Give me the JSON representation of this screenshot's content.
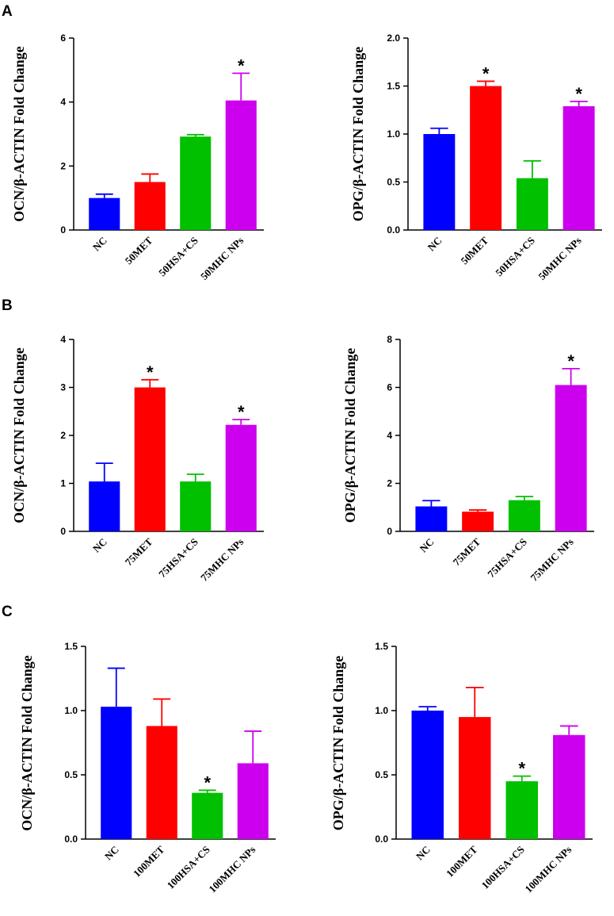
{
  "panels": [
    "A",
    "B",
    "C"
  ],
  "colors": [
    "#0000ff",
    "#ff0000",
    "#00c000",
    "#cc00ee"
  ],
  "chart_data": [
    {
      "id": "A-left",
      "panel": "A",
      "type": "bar",
      "ylabel": "OCN/β-ACTIN Fold Change",
      "categories": [
        "NC",
        "50MET",
        "50HSA+CS",
        "50MHC NPs"
      ],
      "values": [
        1.0,
        1.5,
        2.92,
        4.05
      ],
      "errors": [
        0.12,
        0.25,
        0.06,
        0.85
      ],
      "significant": [
        false,
        false,
        false,
        true
      ],
      "ylim": [
        0,
        6
      ],
      "yticks": [
        "0",
        "2",
        "4",
        "6"
      ],
      "star_label": "*"
    },
    {
      "id": "A-right",
      "panel": "A",
      "type": "bar",
      "ylabel": "OPG/β-ACTIN Fold Change",
      "categories": [
        "NC",
        "50MET",
        "50HSA+CS",
        "50MHC NPs"
      ],
      "values": [
        1.0,
        1.5,
        0.54,
        1.29
      ],
      "errors": [
        0.06,
        0.05,
        0.18,
        0.05
      ],
      "significant": [
        false,
        true,
        false,
        true
      ],
      "ylim": [
        0,
        2
      ],
      "yticks": [
        "0.0",
        "0.5",
        "1.0",
        "1.5",
        "2.0"
      ],
      "star_label": "*"
    },
    {
      "id": "B-left",
      "panel": "B",
      "type": "bar",
      "ylabel": "OCN/β-ACTIN Fold Change",
      "categories": [
        "NC",
        "75MET",
        "75HSA+CS",
        "75MHC NPs"
      ],
      "values": [
        1.04,
        3.0,
        1.04,
        2.22
      ],
      "errors": [
        0.38,
        0.16,
        0.15,
        0.11
      ],
      "significant": [
        false,
        true,
        false,
        true
      ],
      "ylim": [
        0,
        4
      ],
      "yticks": [
        "0",
        "1",
        "2",
        "3",
        "4"
      ],
      "star_label": "*"
    },
    {
      "id": "B-right",
      "panel": "B",
      "type": "bar",
      "ylabel": "OPG/β-ACTIN Fold Change",
      "categories": [
        "NC",
        "75MET",
        "75HSA+CS",
        "75MHC NPs"
      ],
      "values": [
        1.04,
        0.82,
        1.3,
        6.1
      ],
      "errors": [
        0.24,
        0.07,
        0.15,
        0.68
      ],
      "significant": [
        false,
        false,
        false,
        true
      ],
      "ylim": [
        0,
        8
      ],
      "yticks": [
        "0",
        "2",
        "4",
        "6",
        "8"
      ],
      "star_label": "*"
    },
    {
      "id": "C-left",
      "panel": "C",
      "type": "bar",
      "ylabel": "OCN/β-ACTIN Fold Change",
      "categories": [
        "NC",
        "100MET",
        "100HSA+CS",
        "100MHC NPs"
      ],
      "values": [
        1.03,
        0.88,
        0.36,
        0.59
      ],
      "errors": [
        0.3,
        0.21,
        0.02,
        0.25
      ],
      "significant": [
        false,
        false,
        true,
        false
      ],
      "ylim": [
        0,
        1.5
      ],
      "yticks": [
        "0.0",
        "0.5",
        "1.0",
        "1.5"
      ],
      "star_label": "*"
    },
    {
      "id": "C-right",
      "panel": "C",
      "type": "bar",
      "ylabel": "OPG/β-ACTIN Fold Change",
      "categories": [
        "NC",
        "100MET",
        "100HSA+CS",
        "100MHC NPs"
      ],
      "values": [
        1.0,
        0.95,
        0.45,
        0.81
      ],
      "errors": [
        0.03,
        0.23,
        0.04,
        0.07
      ],
      "significant": [
        false,
        false,
        true,
        false
      ],
      "ylim": [
        0,
        1.5
      ],
      "yticks": [
        "0.0",
        "0.5",
        "1.0",
        "1.5"
      ],
      "star_label": "*"
    }
  ]
}
